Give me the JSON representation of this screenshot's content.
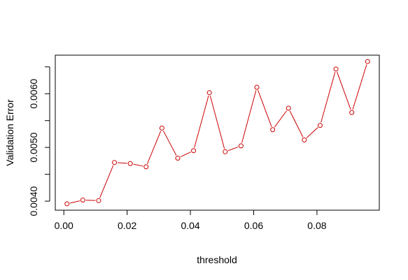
{
  "chart_data": {
    "type": "line",
    "title": "",
    "xlabel": "threshold",
    "ylabel": "Validation Error",
    "x": [
      0.001,
      0.006,
      0.011,
      0.016,
      0.021,
      0.026,
      0.031,
      0.036,
      0.041,
      0.046,
      0.051,
      0.056,
      0.061,
      0.066,
      0.071,
      0.076,
      0.081,
      0.086,
      0.091,
      0.096
    ],
    "series": [
      {
        "values": [
          0.00395,
          0.00402,
          0.00401,
          0.00472,
          0.0047,
          0.00464,
          0.00536,
          0.0048,
          0.00494,
          0.00602,
          0.00492,
          0.00503,
          0.00612,
          0.00533,
          0.00573,
          0.00514,
          0.00541,
          0.00646,
          0.00565,
          0.0066
        ],
        "color": "#cc0000",
        "marker": "open-circle"
      }
    ],
    "xlim": [
      -0.0027,
      0.0997
    ],
    "ylim": [
      0.003832,
      0.006718
    ],
    "xticks": [
      0.0,
      0.02,
      0.04,
      0.06,
      0.08
    ],
    "xtick_labels": [
      "0.00",
      "0.02",
      "0.04",
      "0.06",
      "0.08"
    ],
    "yticks": [
      0.004,
      0.0045,
      0.005,
      0.0055,
      0.006,
      0.0065
    ],
    "ytick_labels": [
      "0.0040",
      "",
      "0.0050",
      "",
      "0.0060",
      ""
    ],
    "grid": false,
    "legend": "none"
  }
}
